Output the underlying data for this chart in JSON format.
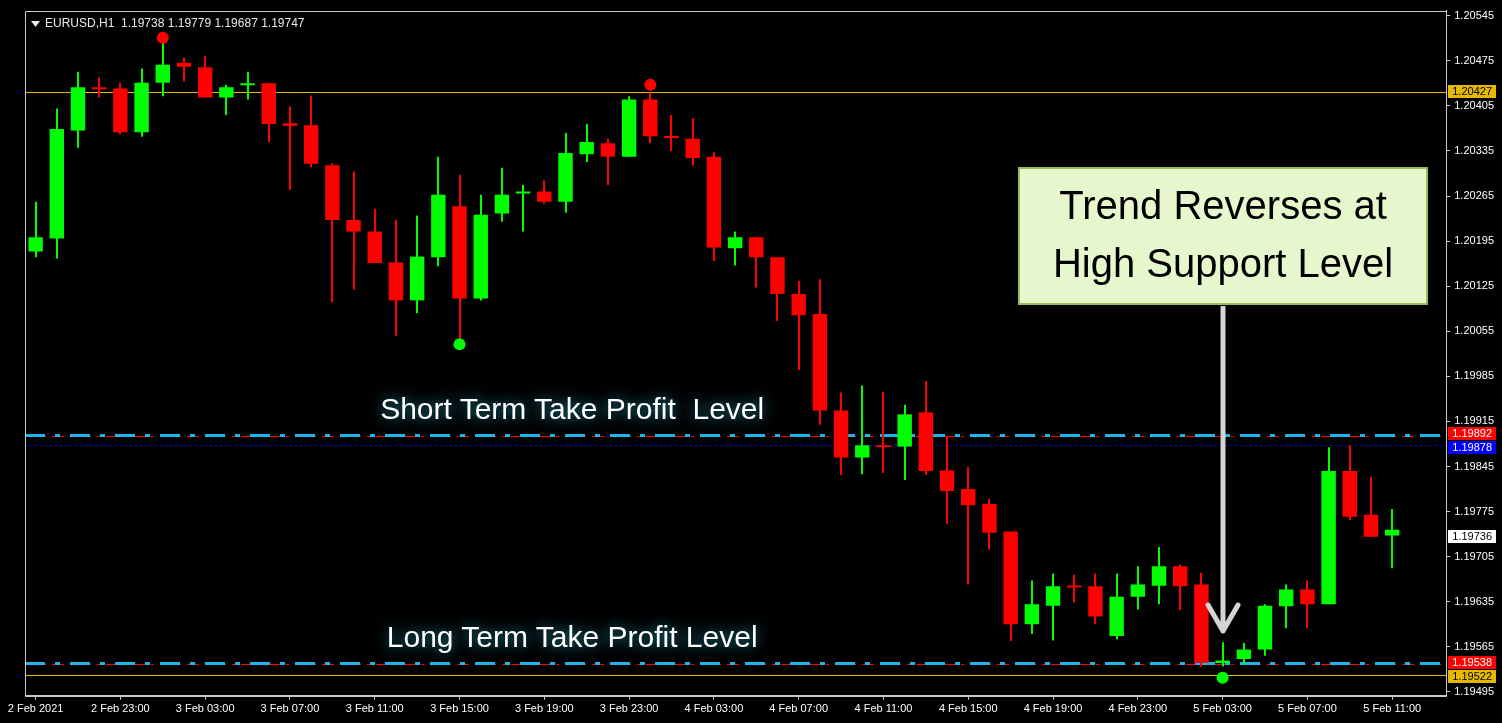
{
  "chart_data": {
    "type": "candlestick",
    "title": "EURUSD,H1  1.19738 1.19779 1.19687 1.19747",
    "x": [
      "2021-02-02T19:00",
      "2021-02-02T20:00",
      "2021-02-02T21:00",
      "2021-02-02T22:00",
      "2021-02-02T23:00",
      "2021-02-03T00:00",
      "2021-02-03T01:00",
      "2021-02-03T02:00",
      "2021-02-03T03:00",
      "2021-02-03T04:00",
      "2021-02-03T05:00",
      "2021-02-03T06:00",
      "2021-02-03T07:00",
      "2021-02-03T08:00",
      "2021-02-03T09:00",
      "2021-02-03T10:00",
      "2021-02-03T11:00",
      "2021-02-03T12:00",
      "2021-02-03T13:00",
      "2021-02-03T14:00",
      "2021-02-03T15:00",
      "2021-02-03T16:00",
      "2021-02-03T17:00",
      "2021-02-03T18:00",
      "2021-02-03T19:00",
      "2021-02-03T20:00",
      "2021-02-03T21:00",
      "2021-02-03T22:00",
      "2021-02-03T23:00",
      "2021-02-04T00:00",
      "2021-02-04T01:00",
      "2021-02-04T02:00",
      "2021-02-04T03:00",
      "2021-02-04T04:00",
      "2021-02-04T05:00",
      "2021-02-04T06:00",
      "2021-02-04T07:00",
      "2021-02-04T08:00",
      "2021-02-04T09:00",
      "2021-02-04T10:00",
      "2021-02-04T11:00",
      "2021-02-04T12:00",
      "2021-02-04T13:00",
      "2021-02-04T14:00",
      "2021-02-04T15:00",
      "2021-02-04T16:00",
      "2021-02-04T17:00",
      "2021-02-04T18:00",
      "2021-02-04T19:00",
      "2021-02-04T20:00",
      "2021-02-04T21:00",
      "2021-02-04T22:00",
      "2021-02-04T23:00",
      "2021-02-05T00:00",
      "2021-02-05T01:00",
      "2021-02-05T02:00",
      "2021-02-05T03:00",
      "2021-02-05T04:00",
      "2021-02-05T05:00",
      "2021-02-05T06:00",
      "2021-02-05T07:00",
      "2021-02-05T08:00",
      "2021-02-05T09:00",
      "2021-02-05T10:00",
      "2021-02-05T11:00"
    ],
    "ohlc": [
      [
        1.20179,
        1.20256,
        1.2017,
        1.20201
      ],
      [
        1.20199,
        1.20401,
        1.20168,
        1.20369
      ],
      [
        1.20367,
        1.20458,
        1.2034,
        1.20434
      ],
      [
        1.20432,
        1.20449,
        1.20418,
        1.20431
      ],
      [
        1.20432,
        1.20441,
        1.20361,
        1.20364
      ],
      [
        1.20364,
        1.20463,
        1.20357,
        1.20441
      ],
      [
        1.20441,
        1.20503,
        1.2042,
        1.20469
      ],
      [
        1.20472,
        1.2048,
        1.20443,
        1.20466
      ],
      [
        1.20465,
        1.20482,
        1.20418,
        1.20418
      ],
      [
        1.20418,
        1.20438,
        1.20391,
        1.20434
      ],
      [
        1.20437,
        1.20458,
        1.20415,
        1.20438
      ],
      [
        1.2044,
        1.2044,
        1.20349,
        1.20377
      ],
      [
        1.20378,
        1.20404,
        1.20275,
        1.20374
      ],
      [
        1.20375,
        1.20421,
        1.2031,
        1.20315
      ],
      [
        1.20313,
        1.20316,
        1.201,
        1.20228
      ],
      [
        1.20228,
        1.20303,
        1.2012,
        1.2021
      ],
      [
        1.2021,
        1.20245,
        1.20161,
        1.20161
      ],
      [
        1.20162,
        1.20228,
        1.20048,
        1.20103
      ],
      [
        1.20103,
        1.20235,
        1.20083,
        1.20171
      ],
      [
        1.2017,
        1.20326,
        1.20156,
        1.20267
      ],
      [
        1.20249,
        1.20298,
        1.2004,
        1.20106
      ],
      [
        1.20106,
        1.20267,
        1.20103,
        1.20236
      ],
      [
        1.20238,
        1.20309,
        1.20225,
        1.20267
      ],
      [
        1.20269,
        1.20282,
        1.2021,
        1.20272
      ],
      [
        1.20272,
        1.20289,
        1.20253,
        1.20256
      ],
      [
        1.20256,
        1.20363,
        1.20239,
        1.20332
      ],
      [
        1.2033,
        1.20377,
        1.20318,
        1.20349
      ],
      [
        1.20347,
        1.20354,
        1.20282,
        1.20326
      ],
      [
        1.20326,
        1.2042,
        1.20326,
        1.20415
      ],
      [
        1.20415,
        1.20426,
        1.20347,
        1.20358
      ],
      [
        1.20358,
        1.20391,
        1.20335,
        1.20355
      ],
      [
        1.20354,
        1.20386,
        1.20312,
        1.20324
      ],
      [
        1.20326,
        1.20333,
        1.20164,
        1.20185
      ],
      [
        1.20184,
        1.2021,
        1.20157,
        1.20201
      ],
      [
        1.20201,
        1.20201,
        1.20123,
        1.2017
      ],
      [
        1.2017,
        1.2017,
        1.20071,
        1.20113
      ],
      [
        1.20113,
        1.20133,
        1.19995,
        1.2008
      ],
      [
        1.20082,
        1.20136,
        1.1991,
        1.19932
      ],
      [
        1.19932,
        1.1996,
        1.19832,
        1.19859
      ],
      [
        1.19859,
        1.19971,
        1.19833,
        1.19878
      ],
      [
        1.19876,
        1.19961,
        1.19835,
        1.19875
      ],
      [
        1.19876,
        1.19941,
        1.19824,
        1.19926
      ],
      [
        1.19929,
        1.19978,
        1.19832,
        1.19838
      ],
      [
        1.19839,
        1.19892,
        1.19756,
        1.19807
      ],
      [
        1.1981,
        1.19844,
        1.19662,
        1.19785
      ],
      [
        1.19787,
        1.19795,
        1.19716,
        1.19742
      ],
      [
        1.19744,
        1.19744,
        1.19574,
        1.196
      ],
      [
        1.196,
        1.19668,
        1.19585,
        1.19631
      ],
      [
        1.19629,
        1.19679,
        1.19575,
        1.19659
      ],
      [
        1.19659,
        1.19677,
        1.19634,
        1.19657
      ],
      [
        1.19659,
        1.19679,
        1.196,
        1.19612
      ],
      [
        1.19582,
        1.19679,
        1.19577,
        1.19643
      ],
      [
        1.19643,
        1.1969,
        1.19623,
        1.19662
      ],
      [
        1.1966,
        1.1972,
        1.19631,
        1.1969
      ],
      [
        1.1969,
        1.19693,
        1.19622,
        1.19659
      ],
      [
        1.19662,
        1.1968,
        1.19534,
        1.1954
      ],
      [
        1.1954,
        1.19572,
        1.19535,
        1.19544
      ],
      [
        1.19546,
        1.19571,
        1.19538,
        1.19561
      ],
      [
        1.19561,
        1.19631,
        1.19551,
        1.19629
      ],
      [
        1.19628,
        1.19662,
        1.19594,
        1.19654
      ],
      [
        1.19654,
        1.19668,
        1.19594,
        1.19631
      ],
      [
        1.19631,
        1.19875,
        1.19631,
        1.19838
      ],
      [
        1.19838,
        1.19878,
        1.19762,
        1.19767
      ],
      [
        1.1977,
        1.19829,
        1.19736,
        1.19736
      ],
      [
        1.19738,
        1.19779,
        1.19687,
        1.19747
      ]
    ],
    "colors": [
      "#00ff00",
      "#00ff00",
      "#00ff00",
      "#ff0000",
      "#ff0000",
      "#00ff00",
      "#00ff00",
      "#ff0000",
      "#ff0000",
      "#00ff00",
      "#00ff00",
      "#ff0000",
      "#ff0000",
      "#ff0000",
      "#ff0000",
      "#ff0000",
      "#ff0000",
      "#ff0000",
      "#00ff00",
      "#00ff00",
      "#ff0000",
      "#00ff00",
      "#00ff00",
      "#00ff00",
      "#ff0000",
      "#00ff00",
      "#00ff00",
      "#ff0000",
      "#00ff00",
      "#ff0000",
      "#ff0000",
      "#ff0000",
      "#ff0000",
      "#00ff00",
      "#ff0000",
      "#ff0000",
      "#ff0000",
      "#ff0000",
      "#ff0000",
      "#00ff00",
      "#ff0000",
      "#00ff00",
      "#ff0000",
      "#ff0000",
      "#ff0000",
      "#ff0000",
      "#ff0000",
      "#00ff00",
      "#00ff00",
      "#ff0000",
      "#ff0000",
      "#00ff00",
      "#00ff00",
      "#00ff00",
      "#ff0000",
      "#ff0000",
      "#00ff00",
      "#00ff00",
      "#00ff00",
      "#00ff00",
      "#ff0000",
      "#00ff00",
      "#ff0000",
      "#ff0000",
      "#00ff00"
    ],
    "series": [
      {
        "type": "scatter",
        "color": "#ff0000",
        "x": [
          "2021-02-03T01:00",
          "2021-02-04T00:00"
        ],
        "values": [
          1.20511,
          1.20438
        ]
      },
      {
        "type": "scatter",
        "color": "#00ff00",
        "x": [
          "2021-02-03T15:00",
          "2021-02-05T03:00"
        ],
        "values": [
          1.20035,
          1.19517
        ]
      }
    ],
    "marker": "circle",
    "xlim": [
      "2021-02-02T18:30",
      "2021-02-05T13:33"
    ],
    "xticks": [
      {
        "value": "2021-02-02T19:00",
        "label": "2 Feb 2021"
      },
      {
        "value": "2021-02-02T23:00",
        "label": "2 Feb 23:00"
      },
      {
        "value": "2021-02-03T03:00",
        "label": "3 Feb 03:00"
      },
      {
        "value": "2021-02-03T07:00",
        "label": "3 Feb 07:00"
      },
      {
        "value": "2021-02-03T11:00",
        "label": "3 Feb 11:00"
      },
      {
        "value": "2021-02-03T15:00",
        "label": "3 Feb 15:00"
      },
      {
        "value": "2021-02-03T19:00",
        "label": "3 Feb 19:00"
      },
      {
        "value": "2021-02-03T23:00",
        "label": "3 Feb 23:00"
      },
      {
        "value": "2021-02-04T03:00",
        "label": "4 Feb 03:00"
      },
      {
        "value": "2021-02-04T07:00",
        "label": "4 Feb 07:00"
      },
      {
        "value": "2021-02-04T11:00",
        "label": "4 Feb 11:00"
      },
      {
        "value": "2021-02-04T15:00",
        "label": "4 Feb 15:00"
      },
      {
        "value": "2021-02-04T19:00",
        "label": "4 Feb 19:00"
      },
      {
        "value": "2021-02-04T23:00",
        "label": "4 Feb 23:00"
      },
      {
        "value": "2021-02-05T03:00",
        "label": "5 Feb 03:00"
      },
      {
        "value": "2021-02-05T07:00",
        "label": "5 Feb 07:00"
      },
      {
        "value": "2021-02-05T11:00",
        "label": "5 Feb 11:00"
      }
    ],
    "ylim": [
      1.19489,
      1.20553
    ],
    "yticks": [
      1.19495,
      1.19565,
      1.19635,
      1.19705,
      1.19775,
      1.19845,
      1.19915,
      1.19985,
      1.20055,
      1.20125,
      1.20195,
      1.20265,
      1.20335,
      1.20405,
      1.20475,
      1.20545
    ],
    "ref_lines": [
      {
        "axis": "y",
        "value": 1.20427,
        "color": "#e6b800",
        "line_style": "solid"
      },
      {
        "axis": "y",
        "value": 1.19522,
        "color": "#e6b800",
        "line_style": "solid"
      },
      {
        "axis": "y",
        "value": 1.19892,
        "color": "#ff0000",
        "line_style": "dashed"
      },
      {
        "axis": "y",
        "value": 1.19878,
        "color": "#0000ff",
        "line_style": "dotted"
      },
      {
        "axis": "y",
        "value": 1.19538,
        "color": "#ff0000",
        "line_style": "dashed"
      },
      {
        "axis": "y",
        "value": 1.19894,
        "label": "Short Term Take Profit  Level",
        "color": "#1fb5ec",
        "line_style": "dashed"
      },
      {
        "axis": "y",
        "value": 1.1954,
        "label": "Long Term Take Profit Level",
        "color": "#1fb5ec",
        "line_style": "dashed"
      }
    ],
    "annotations": [
      "Trend Reverses at High Support Level",
      "1.20427",
      "1.19892",
      "1.19878",
      "1.19538",
      "1.19522",
      "1.19736"
    ]
  }
}
